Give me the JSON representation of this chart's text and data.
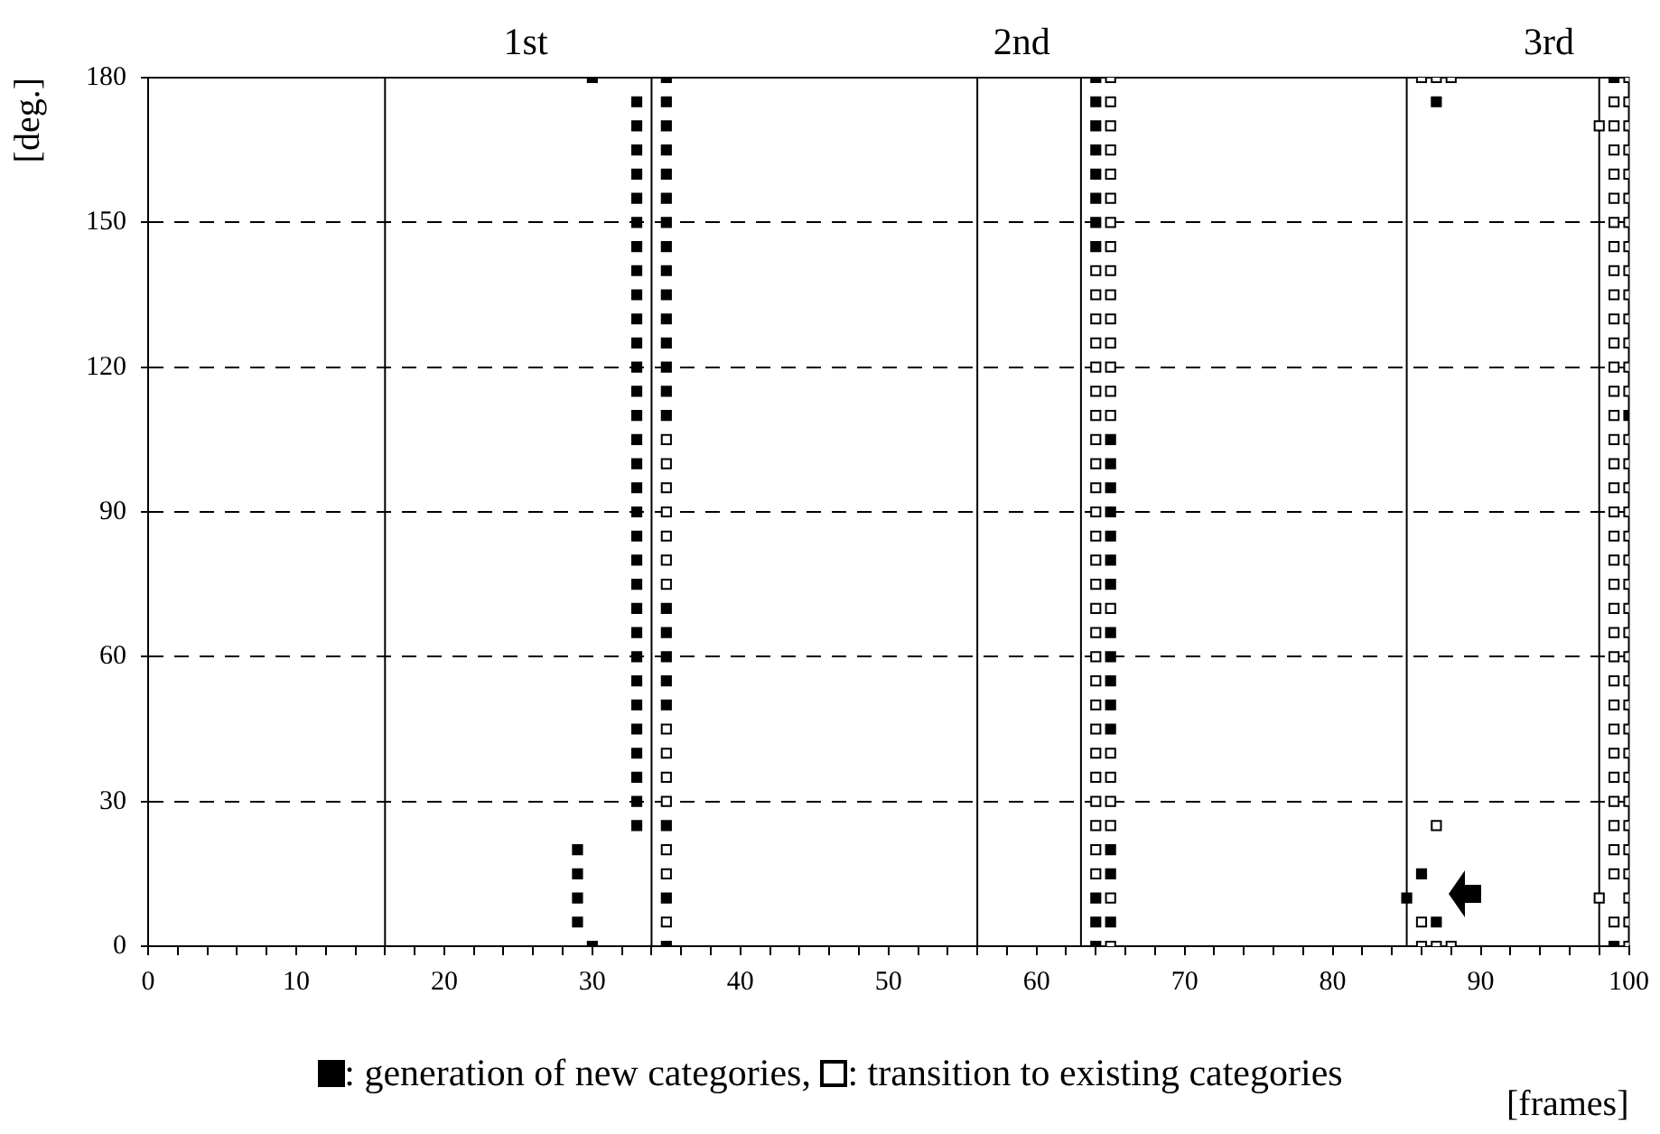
{
  "chart_data": {
    "type": "scatter",
    "xlabel": "[frames]",
    "ylabel": "[deg.]",
    "marker": "square",
    "grid": "y",
    "legend": "bottom",
    "xlim": [
      0,
      100
    ],
    "ylim": [
      0,
      180
    ],
    "xticks": [
      0,
      {
        "value": 2,
        "label": null
      },
      {
        "value": 4,
        "label": null
      },
      {
        "value": 6,
        "label": null
      },
      {
        "value": 8,
        "label": null
      },
      10,
      {
        "value": 12,
        "label": null
      },
      {
        "value": 14,
        "label": null
      },
      {
        "value": 16,
        "label": null
      },
      {
        "value": 18,
        "label": null
      },
      20,
      {
        "value": 22,
        "label": null
      },
      {
        "value": 24,
        "label": null
      },
      {
        "value": 26,
        "label": null
      },
      {
        "value": 28,
        "label": null
      },
      30,
      {
        "value": 32,
        "label": null
      },
      {
        "value": 34,
        "label": null
      },
      {
        "value": 36,
        "label": null
      },
      {
        "value": 38,
        "label": null
      },
      40,
      {
        "value": 42,
        "label": null
      },
      {
        "value": 44,
        "label": null
      },
      {
        "value": 46,
        "label": null
      },
      {
        "value": 48,
        "label": null
      },
      50,
      {
        "value": 52,
        "label": null
      },
      {
        "value": 54,
        "label": null
      },
      {
        "value": 56,
        "label": null
      },
      {
        "value": 58,
        "label": null
      },
      60,
      {
        "value": 62,
        "label": null
      },
      {
        "value": 64,
        "label": null
      },
      {
        "value": 66,
        "label": null
      },
      {
        "value": 68,
        "label": null
      },
      70,
      {
        "value": 72,
        "label": null
      },
      {
        "value": 74,
        "label": null
      },
      {
        "value": 76,
        "label": null
      },
      {
        "value": 78,
        "label": null
      },
      80,
      {
        "value": 82,
        "label": null
      },
      {
        "value": 84,
        "label": null
      },
      {
        "value": 86,
        "label": null
      },
      {
        "value": 88,
        "label": null
      },
      90,
      {
        "value": 92,
        "label": null
      },
      {
        "value": 94,
        "label": null
      },
      {
        "value": 96,
        "label": null
      },
      {
        "value": 98,
        "label": null
      },
      100
    ],
    "yticks": [
      0,
      30,
      60,
      90,
      120,
      150,
      180
    ],
    "ref_lines": [
      {
        "axis": "x",
        "value": 16,
        "color": "#000000"
      },
      {
        "axis": "x",
        "value": 34,
        "color": "#000000"
      },
      {
        "axis": "x",
        "value": 56,
        "color": "#000000"
      },
      {
        "axis": "x",
        "value": 63,
        "color": "#000000"
      },
      {
        "axis": "x",
        "value": 85,
        "color": "#000000"
      },
      {
        "axis": "x",
        "value": 98,
        "color": "#000000"
      }
    ],
    "annotations": [
      "1st",
      "2nd",
      "3rd"
    ],
    "series": [
      {
        "name": ": generation of new categories,",
        "color": "#000000",
        "x": [
          29,
          29,
          29,
          29,
          30,
          30,
          33,
          33,
          33,
          33,
          33,
          33,
          33,
          33,
          33,
          33,
          33,
          33,
          33,
          33,
          33,
          33,
          33,
          33,
          33,
          33,
          33,
          33,
          33,
          33,
          33,
          33,
          33,
          33,
          33,
          33,
          33,
          35,
          35,
          35,
          35,
          35,
          35,
          35,
          35,
          35,
          35,
          35,
          35,
          35,
          35,
          35,
          35,
          35,
          35,
          35,
          35,
          35,
          35,
          35,
          64,
          64,
          64,
          64,
          64,
          64,
          64,
          64,
          64,
          64,
          64,
          65,
          65,
          65,
          65,
          65,
          65,
          65,
          65,
          65,
          65,
          65,
          65,
          65,
          65,
          65,
          85,
          86,
          87,
          87,
          99,
          99,
          100
        ],
        "values": [
          5,
          10,
          15,
          20,
          0,
          180,
          25,
          30,
          35,
          40,
          45,
          50,
          55,
          60,
          65,
          70,
          75,
          80,
          85,
          90,
          95,
          100,
          105,
          110,
          115,
          120,
          125,
          130,
          135,
          140,
          145,
          150,
          155,
          160,
          165,
          170,
          175,
          180,
          175,
          170,
          165,
          160,
          155,
          150,
          145,
          140,
          135,
          130,
          125,
          120,
          115,
          110,
          70,
          65,
          60,
          55,
          50,
          25,
          10,
          0,
          180,
          175,
          170,
          165,
          160,
          155,
          150,
          145,
          10,
          5,
          0,
          105,
          100,
          95,
          90,
          85,
          80,
          75,
          65,
          60,
          55,
          50,
          45,
          20,
          15,
          5,
          10,
          15,
          175,
          5,
          180,
          0,
          110
        ]
      },
      {
        "name": ": transition to existing categories",
        "color": "#ffffff",
        "x": [
          35,
          35,
          35,
          35,
          35,
          35,
          35,
          35,
          35,
          35,
          35,
          35,
          35,
          35,
          64,
          64,
          64,
          64,
          64,
          64,
          64,
          64,
          64,
          64,
          64,
          64,
          64,
          64,
          64,
          64,
          64,
          64,
          64,
          64,
          64,
          64,
          64,
          64,
          64,
          64,
          65,
          65,
          65,
          65,
          65,
          65,
          65,
          65,
          65,
          65,
          65,
          65,
          65,
          65,
          65,
          65,
          65,
          65,
          65,
          65,
          65,
          65,
          86,
          86,
          86,
          87,
          87,
          87,
          88,
          88,
          98,
          98,
          99,
          99,
          99,
          99,
          99,
          99,
          99,
          99,
          99,
          99,
          99,
          99,
          99,
          99,
          99,
          99,
          99,
          99,
          99,
          99,
          99,
          99,
          99,
          99,
          99,
          99,
          99,
          99,
          99,
          99,
          99,
          99,
          99,
          99,
          100,
          100,
          100,
          100,
          100,
          100,
          100,
          100,
          100,
          100,
          100,
          100,
          100,
          100,
          100,
          100,
          100,
          100,
          100,
          100,
          100,
          100,
          100,
          100,
          100,
          100,
          100,
          100,
          100,
          100,
          100,
          100,
          100,
          100,
          100,
          100
        ],
        "values": [
          105,
          100,
          95,
          90,
          85,
          80,
          75,
          45,
          40,
          35,
          30,
          20,
          15,
          5,
          140,
          135,
          130,
          125,
          120,
          115,
          110,
          105,
          100,
          95,
          90,
          85,
          80,
          75,
          70,
          65,
          60,
          55,
          50,
          45,
          40,
          35,
          30,
          25,
          20,
          15,
          180,
          175,
          170,
          165,
          160,
          155,
          150,
          145,
          140,
          135,
          130,
          125,
          120,
          115,
          110,
          70,
          40,
          35,
          30,
          25,
          10,
          0,
          180,
          5,
          0,
          180,
          25,
          0,
          180,
          0,
          170,
          10,
          175,
          170,
          165,
          160,
          155,
          150,
          145,
          140,
          135,
          130,
          125,
          120,
          115,
          110,
          105,
          100,
          95,
          90,
          85,
          80,
          75,
          70,
          65,
          60,
          55,
          50,
          45,
          40,
          35,
          30,
          25,
          20,
          15,
          5,
          180,
          175,
          170,
          165,
          160,
          155,
          150,
          145,
          140,
          135,
          130,
          125,
          120,
          115,
          105,
          100,
          95,
          90,
          85,
          80,
          75,
          70,
          65,
          60,
          55,
          50,
          45,
          40,
          35,
          30,
          25,
          20,
          15,
          10,
          5,
          0
        ]
      }
    ]
  }
}
